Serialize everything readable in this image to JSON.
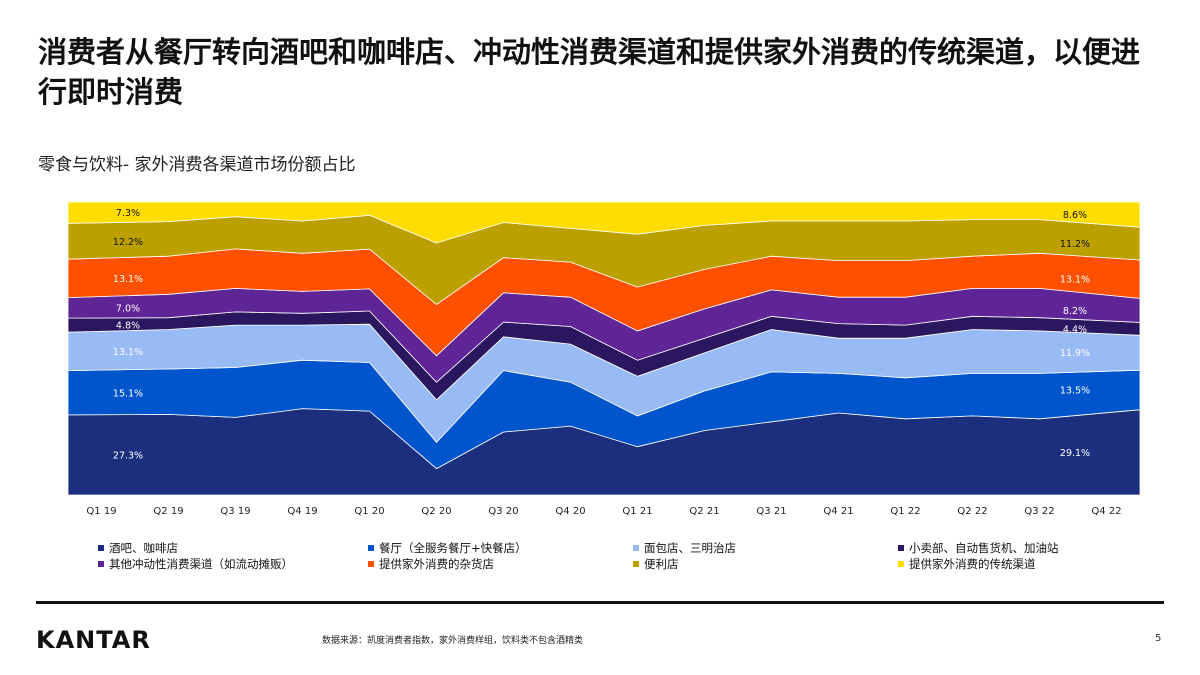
{
  "title": "消费者从餐厅转向酒吧和咖啡店、冲动性消费渠道和提供家外消费的传统渠道，以便进行即时消费",
  "subtitle": "零食与饮料- 家外消费各渠道市场份额占比",
  "footer": {
    "logo": "KANTAR",
    "source": "数据来源：凯度消费者指数，家外消费样组，饮料类不包含酒精类",
    "page": "5"
  },
  "chart_data": {
    "type": "area",
    "stacked": true,
    "x": [
      "Q1 19",
      "Q2 19",
      "Q3 19",
      "Q4 19",
      "Q1 20",
      "Q2 20",
      "Q3 20",
      "Q4 20",
      "Q1 21",
      "Q2 21",
      "Q3 21",
      "Q4 21",
      "Q1 22",
      "Q2 22",
      "Q3 22",
      "Q4 22"
    ],
    "ylim": [
      0,
      100
    ],
    "legend_position": "bottom",
    "series": [
      {
        "name": "酒吧、咖啡店",
        "color": "#1B2F7E",
        "values": [
          27.3,
          27.5,
          26.5,
          29.5,
          28.5,
          9.0,
          21.5,
          23.5,
          16.5,
          22.0,
          25.0,
          28.0,
          26.0,
          27.0,
          26.0,
          29.1
        ]
      },
      {
        "name": "餐厅（全服务餐厅+快餐店）",
        "color": "#0055CC",
        "values": [
          15.1,
          15.5,
          17.0,
          16.5,
          16.5,
          9.0,
          21.0,
          15.0,
          10.5,
          13.5,
          17.0,
          13.5,
          14.0,
          14.5,
          15.5,
          13.5
        ]
      },
      {
        "name": "面包店、三明治店",
        "color": "#99BBF5",
        "values": [
          13.1,
          13.5,
          14.5,
          12.0,
          13.0,
          14.5,
          11.5,
          13.0,
          13.5,
          13.0,
          14.5,
          12.0,
          13.5,
          15.0,
          14.5,
          11.9
        ]
      },
      {
        "name": "小卖部、自动售货机、加油站",
        "color": "#2B1660",
        "values": [
          4.8,
          4.0,
          4.5,
          4.0,
          4.5,
          6.0,
          5.0,
          6.0,
          5.5,
          5.0,
          4.5,
          5.0,
          4.5,
          4.5,
          4.5,
          4.4
        ]
      },
      {
        "name": "其他冲动性消费渠道（如流动摊贩）",
        "color": "#5F2596",
        "values": [
          7.0,
          8.0,
          8.0,
          7.5,
          7.5,
          9.0,
          10.0,
          10.0,
          10.0,
          10.0,
          9.0,
          9.0,
          9.5,
          9.5,
          10.0,
          8.2
        ]
      },
      {
        "name": "提供家外消费的杂货店",
        "color": "#FF5000",
        "values": [
          13.1,
          13.0,
          13.5,
          13.0,
          13.5,
          17.5,
          12.0,
          12.0,
          15.0,
          13.5,
          11.5,
          12.5,
          12.5,
          11.0,
          12.0,
          13.1
        ]
      },
      {
        "name": "便利店",
        "color": "#BBA000",
        "values": [
          12.2,
          11.8,
          11.0,
          11.0,
          11.5,
          21.0,
          12.0,
          11.5,
          18.0,
          15.0,
          12.0,
          13.5,
          13.5,
          12.5,
          11.5,
          11.2
        ]
      },
      {
        "name": "提供家外消费的传统渠道",
        "color": "#FFDD00",
        "values": [
          7.3,
          6.7,
          5.0,
          6.5,
          4.5,
          14.0,
          7.0,
          9.0,
          11.0,
          8.0,
          6.5,
          6.5,
          6.5,
          6.0,
          6.0,
          8.6
        ]
      }
    ],
    "data_labels": {
      "first": [
        "27.3%",
        "15.1%",
        "13.1%",
        "4.8%",
        "7.0%",
        "13.1%",
        "12.2%",
        "7.3%"
      ],
      "last": [
        "29.1%",
        "13.5%",
        "11.9%",
        "4.4%",
        "8.2%",
        "13.1%",
        "11.2%",
        "8.6%"
      ]
    }
  }
}
